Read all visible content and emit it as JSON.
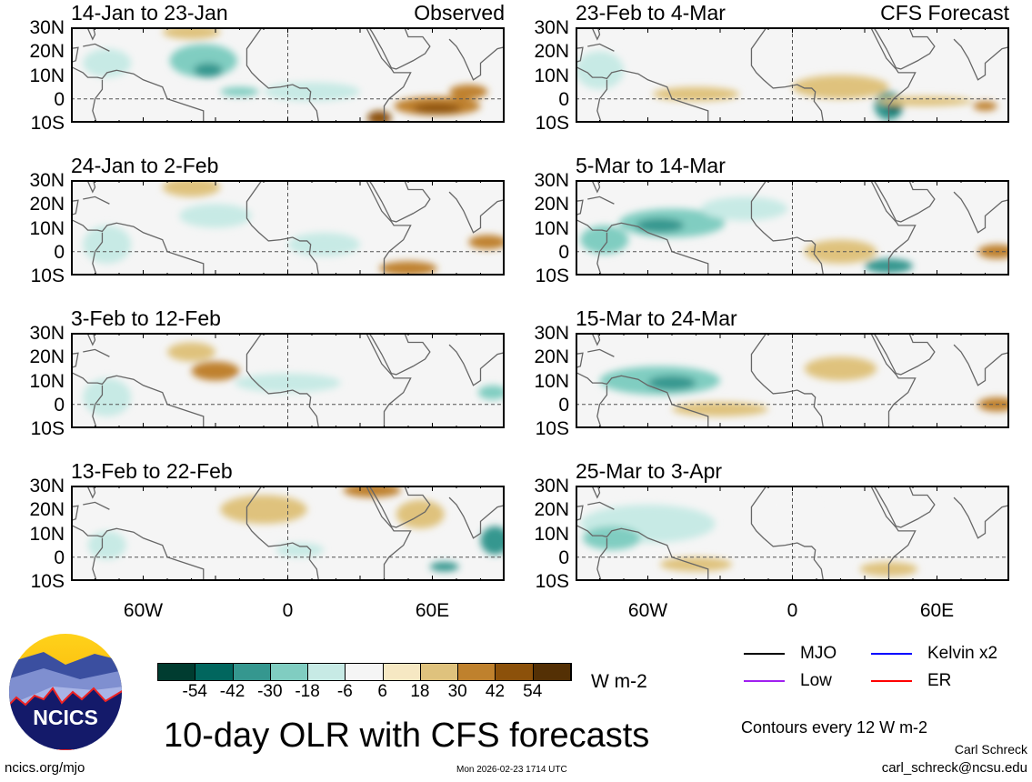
{
  "chart_data": {
    "type": "heatmap",
    "title": "10-day OLR with CFS forecasts",
    "units": "W m-2",
    "lon_range": [
      -90,
      90
    ],
    "lat_range": [
      -10,
      30
    ],
    "lat_ticks": [
      "30N",
      "20N",
      "10N",
      "0",
      "10S"
    ],
    "lon_ticks": [
      {
        "lon": -60,
        "label": "60W"
      },
      {
        "lon": 0,
        "label": "0"
      },
      {
        "lon": 60,
        "label": "60E"
      }
    ],
    "colorbar": {
      "labels": [
        "-54",
        "-42",
        "-30",
        "-18",
        "-6",
        "6",
        "18",
        "30",
        "42",
        "54"
      ],
      "colors": [
        "#003c30",
        "#01665e",
        "#35978f",
        "#80cdc1",
        "#c7eae5",
        "#f5f5f5",
        "#f6e8c3",
        "#dfc27d",
        "#bf812d",
        "#8c510a",
        "#543005"
      ]
    },
    "panels": [
      {
        "title": "14-Jan to 23-Jan",
        "tag": "Observed",
        "features": [
          [
            -35,
            16,
            14,
            7,
            -30
          ],
          [
            -33,
            12,
            6,
            3,
            -42
          ],
          [
            -20,
            3,
            8,
            2,
            -30
          ],
          [
            -75,
            15,
            10,
            6,
            -18
          ],
          [
            10,
            3,
            20,
            4,
            -18
          ],
          [
            62,
            -3,
            18,
            4,
            30
          ],
          [
            62,
            -4,
            10,
            2,
            42
          ],
          [
            75,
            3,
            8,
            3,
            30
          ],
          [
            38,
            -8,
            5,
            3,
            42
          ],
          [
            -40,
            28,
            12,
            3,
            18
          ]
        ]
      },
      {
        "title": "24-Jan to 2-Feb",
        "tag": "",
        "features": [
          [
            -30,
            15,
            15,
            5,
            -18
          ],
          [
            -75,
            3,
            10,
            8,
            -18
          ],
          [
            15,
            3,
            15,
            5,
            -18
          ],
          [
            50,
            -7,
            12,
            3,
            30
          ],
          [
            83,
            4,
            8,
            3,
            30
          ],
          [
            -40,
            27,
            12,
            4,
            18
          ]
        ]
      },
      {
        "title": "3-Feb to 12-Feb",
        "tag": "",
        "features": [
          [
            -30,
            14,
            10,
            4,
            30
          ],
          [
            -75,
            3,
            10,
            8,
            -18
          ],
          [
            0,
            9,
            22,
            4,
            -18
          ],
          [
            85,
            5,
            6,
            3,
            -30
          ],
          [
            -40,
            22,
            10,
            4,
            18
          ]
        ]
      },
      {
        "title": "13-Feb to 22-Feb",
        "tag": "",
        "features": [
          [
            -10,
            20,
            18,
            6,
            18
          ],
          [
            35,
            28,
            12,
            3,
            30
          ],
          [
            86,
            7,
            6,
            6,
            -42
          ],
          [
            65,
            -4,
            6,
            2,
            -42
          ],
          [
            5,
            3,
            10,
            3,
            -18
          ],
          [
            -75,
            5,
            8,
            6,
            -18
          ],
          [
            55,
            18,
            10,
            6,
            18
          ]
        ]
      },
      {
        "title": "23-Feb to 4-Mar",
        "tag": "CFS Forecast",
        "features": [
          [
            -40,
            2,
            18,
            3,
            18
          ],
          [
            40,
            -3,
            6,
            6,
            -42
          ],
          [
            42,
            -3,
            3,
            3,
            -54
          ],
          [
            -80,
            12,
            10,
            8,
            -18
          ],
          [
            20,
            5,
            20,
            5,
            18
          ],
          [
            80,
            -3,
            5,
            2,
            30
          ],
          [
            55,
            -1,
            20,
            2,
            18
          ]
        ]
      },
      {
        "title": "5-Mar to 14-Mar",
        "tag": "",
        "features": [
          [
            -50,
            12,
            22,
            6,
            -30
          ],
          [
            -55,
            11,
            10,
            3,
            -42
          ],
          [
            -78,
            5,
            10,
            6,
            -30
          ],
          [
            40,
            -6,
            10,
            3,
            -42
          ],
          [
            20,
            0,
            15,
            5,
            18
          ],
          [
            85,
            0,
            8,
            3,
            30
          ],
          [
            -20,
            18,
            18,
            5,
            -18
          ]
        ]
      },
      {
        "title": "15-Mar to 24-Mar",
        "tag": "",
        "features": [
          [
            -55,
            10,
            25,
            6,
            -30
          ],
          [
            -50,
            9,
            10,
            3,
            -42
          ],
          [
            -30,
            -2,
            20,
            3,
            18
          ],
          [
            85,
            0,
            8,
            3,
            30
          ],
          [
            20,
            15,
            15,
            5,
            18
          ]
        ]
      },
      {
        "title": "25-Mar to 3-Apr",
        "tag": "",
        "features": [
          [
            -60,
            14,
            28,
            8,
            -18
          ],
          [
            -75,
            8,
            12,
            5,
            -30
          ],
          [
            -40,
            -3,
            15,
            3,
            18
          ],
          [
            40,
            -5,
            12,
            3,
            18
          ],
          [
            -10,
            22,
            20,
            4,
            -6
          ]
        ]
      }
    ],
    "legend": [
      {
        "label": "MJO",
        "color": "#000000"
      },
      {
        "label": "Kelvin x2",
        "color": "#0000ff"
      },
      {
        "label": "Low",
        "color": "#a020f0"
      },
      {
        "label": "ER",
        "color": "#ff0000"
      }
    ]
  },
  "contours_note": "Contours every 12 W m-2",
  "author": "Carl Schreck",
  "email": "carl_schreck@ncsu.edu",
  "site": "ncics.org/mjo",
  "timestamp": "Mon 2026-02-23 1714 UTC",
  "logo_text": "NCICS"
}
